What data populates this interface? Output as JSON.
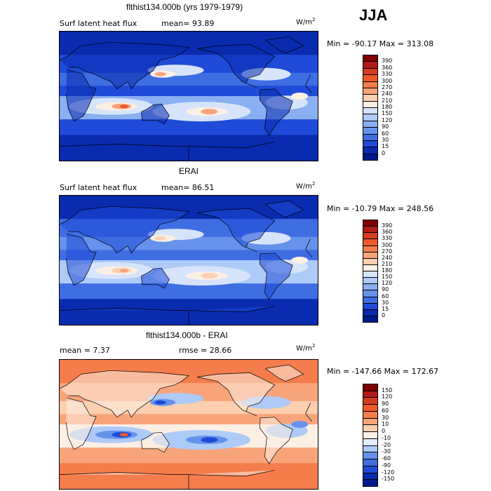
{
  "season": "JJA",
  "panels": [
    {
      "title": "flthist134.000b (yrs 1979-1979)",
      "variable": "Surf latent heat flux",
      "stat1": "mean=  93.89",
      "stat2": "",
      "units": "W/m",
      "units_exp": "2",
      "minmax": "Min = -90.17 Max = 313.08",
      "colorbar": {
        "labels": [
          "390",
          "360",
          "330",
          "300",
          "270",
          "240",
          "210",
          "180",
          "150",
          "120",
          "90",
          "60",
          "30",
          "15",
          "0"
        ],
        "colors": [
          "#800000",
          "#b31a1a",
          "#d83b1f",
          "#ee5a2a",
          "#f47d4b",
          "#f8a47b",
          "#fbcfaf",
          "#fcefe4",
          "#d6e4fb",
          "#aecaf7",
          "#8aaff2",
          "#6792ec",
          "#3f6ee3",
          "#1f4bd8",
          "#0a2aaf",
          "#001a8c"
        ]
      },
      "map_palette": {
        "ocean": "#1f4bd8",
        "deep": "#0a2aaf",
        "mid": "#3f6ee3",
        "light": "#8aaff2",
        "pale": "#d6e4fb",
        "warm": "#fcefe4",
        "hot": "#f8a47b",
        "hotter": "#ee5a2a",
        "land": "#0a2aaf"
      }
    },
    {
      "title": "ERAI",
      "variable": "Surf latent heat flux",
      "stat1": "mean=  86.51",
      "stat2": "",
      "units": "W/m",
      "units_exp": "2",
      "minmax": "Min = -10.79 Max = 248.56",
      "colorbar": {
        "labels": [
          "390",
          "360",
          "330",
          "300",
          "270",
          "240",
          "210",
          "180",
          "150",
          "120",
          "90",
          "60",
          "30",
          "15",
          "0"
        ],
        "colors": [
          "#800000",
          "#b31a1a",
          "#d83b1f",
          "#ee5a2a",
          "#f47d4b",
          "#f8a47b",
          "#fbcfaf",
          "#fcefe4",
          "#d6e4fb",
          "#aecaf7",
          "#8aaff2",
          "#6792ec",
          "#3f6ee3",
          "#1f4bd8",
          "#0a2aaf",
          "#001a8c"
        ]
      },
      "map_palette": {
        "ocean": "#3f6ee3",
        "deep": "#0a2aaf",
        "mid": "#6792ec",
        "light": "#aecaf7",
        "pale": "#d6e4fb",
        "warm": "#fcefe4",
        "hot": "#fbcfaf",
        "hotter": "#f8a47b",
        "land": "#1f4bd8"
      }
    },
    {
      "title": "flthist134.000b - ERAI",
      "variable": "",
      "stat1": "mean =   7.37",
      "stat2": "rmse =   28.66",
      "units": "W/m",
      "units_exp": "2",
      "minmax": "Min = -147.66 Max = 172.67",
      "colorbar": {
        "labels": [
          "150",
          "120",
          "90",
          "60",
          "30",
          "10",
          "0",
          "-10",
          "-20",
          "-30",
          "-60",
          "-90",
          "-120",
          "-150"
        ],
        "colors": [
          "#800000",
          "#b31a1a",
          "#d83b1f",
          "#ee5a2a",
          "#f47d4b",
          "#f8a47b",
          "#fbcfaf",
          "#fcefe4",
          "#e3ecfc",
          "#aecaf7",
          "#6792ec",
          "#3f6ee3",
          "#1f4bd8",
          "#0a2aaf",
          "#001a8c"
        ]
      },
      "map_palette": {
        "ocean": "#f8a47b",
        "deep": "#f47d4b",
        "mid": "#fbcfaf",
        "light": "#fcefe4",
        "pale": "#aecaf7",
        "warm": "#6792ec",
        "hot": "#1f4bd8",
        "hotter": "#ee5a2a",
        "land": "#fcefe4"
      }
    }
  ]
}
